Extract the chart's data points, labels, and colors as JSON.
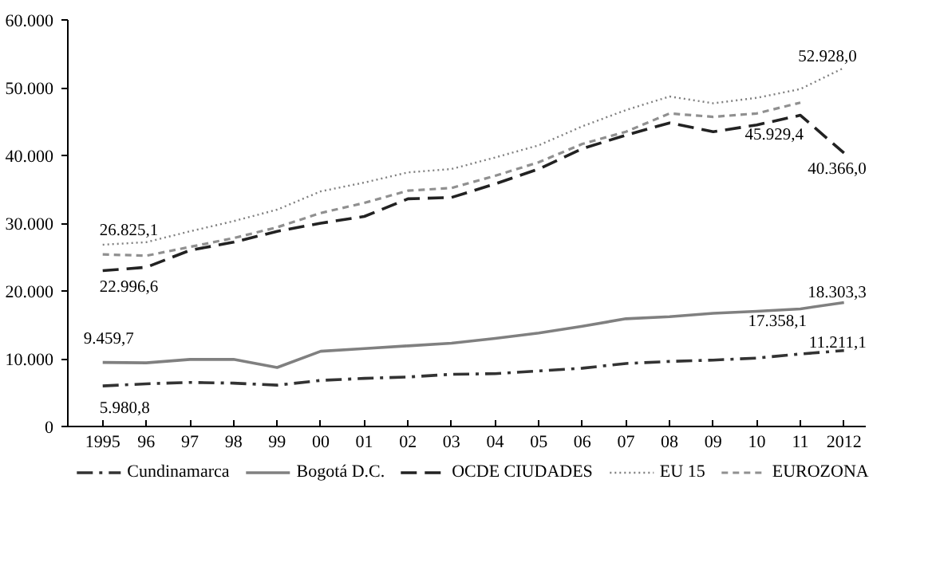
{
  "chart_data": {
    "type": "line",
    "categories": [
      "1995",
      "96",
      "97",
      "98",
      "99",
      "00",
      "01",
      "02",
      "03",
      "04",
      "05",
      "06",
      "07",
      "08",
      "09",
      "10",
      "11",
      "2012"
    ],
    "ylim": [
      0,
      60000
    ],
    "yticks": [
      0,
      {
        "value": 10000,
        "label": "10.000"
      },
      {
        "value": 20000,
        "label": "20.000"
      },
      {
        "value": 30000,
        "label": "30.000"
      },
      {
        "value": 40000,
        "label": "40.000"
      },
      {
        "value": 50000,
        "label": "50.000"
      },
      {
        "value": 60000,
        "label": "60.000"
      }
    ],
    "grid": false,
    "legend": "bottom",
    "marker": "none",
    "series": [
      {
        "name": "Cundinamarca",
        "color": "#333333",
        "line_style": "dashdot",
        "values": [
          5980.8,
          6300,
          6500,
          6400,
          6100,
          6800,
          7100,
          7300,
          7700,
          7800,
          8200,
          8600,
          9300,
          9600,
          9800,
          10100,
          10700,
          11211.1
        ]
      },
      {
        "name": "Bogotá D.C.",
        "color": "#808080",
        "line_style": "solid",
        "values": [
          9459.7,
          9400,
          9900,
          9900,
          8700,
          11100,
          11500,
          11900,
          12300,
          13000,
          13800,
          14800,
          15900,
          16200,
          16700,
          17000,
          17358.1,
          18303.3
        ]
      },
      {
        "name": "OCDE CIUDADES",
        "color": "#222222",
        "line_style": "dashed",
        "values": [
          22996.6,
          23500,
          26000,
          27200,
          28800,
          30000,
          31000,
          33600,
          33800,
          35800,
          38000,
          41000,
          43000,
          44800,
          43500,
          44500,
          45929.4,
          40366.0
        ]
      },
      {
        "name": "EU 15",
        "color": "#808080",
        "line_style": "dotted",
        "values": [
          26825.1,
          27200,
          28800,
          30300,
          32000,
          34700,
          36000,
          37500,
          38000,
          39700,
          41500,
          44300,
          46700,
          48700,
          47700,
          48500,
          49800,
          52928.0
        ]
      },
      {
        "name": "EUROZONA",
        "color": "#909090",
        "line_style": "shortdash",
        "values": [
          25400,
          25200,
          26500,
          27800,
          29400,
          31500,
          33000,
          34800,
          35200,
          37000,
          39000,
          41700,
          43500,
          46200,
          45700,
          46200,
          47800,
          null
        ]
      }
    ],
    "annotations": [
      {
        "text": "26.825,1",
        "x": "1995",
        "y": 26825.1
      },
      {
        "text": "22.996,6",
        "x": "1995",
        "y": 22996.6
      },
      {
        "text": "9.459,7",
        "x": "1995",
        "y": 9459.7
      },
      {
        "text": "5.980,8",
        "x": "1995",
        "y": 5980.8
      },
      {
        "text": "52.928,0",
        "x": "2012",
        "y": 52928.0
      },
      {
        "text": "45.929,4",
        "x": "11",
        "y": 45929.4
      },
      {
        "text": "40.366,0",
        "x": "2012",
        "y": 40366.0
      },
      {
        "text": "18.303,3",
        "x": "2012",
        "y": 18303.3
      },
      {
        "text": "17.358,1",
        "x": "11",
        "y": 17358.1
      },
      {
        "text": "11.211,1",
        "x": "2012",
        "y": 11211.1
      }
    ]
  }
}
